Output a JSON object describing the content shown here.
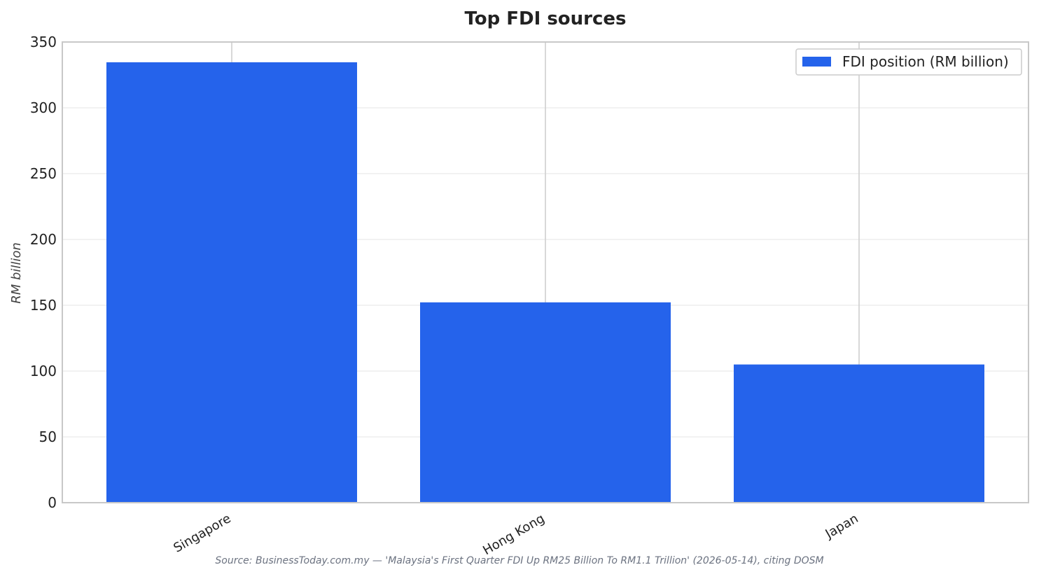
{
  "chart_data": {
    "type": "bar",
    "title": "Top FDI sources",
    "xlabel": "",
    "ylabel": "RM billion",
    "categories": [
      "Singapore",
      "Hong Kong",
      "Japan"
    ],
    "series": [
      {
        "name": "FDI position (RM billion)",
        "values": [
          334.6,
          152.2,
          105.0
        ],
        "color": "#2563eb"
      }
    ],
    "ylim": [
      0,
      350
    ],
    "yticks": [
      0,
      50,
      100,
      150,
      200,
      250,
      300,
      350
    ],
    "ytick_labels": [
      "0",
      "50",
      "100",
      "150",
      "200",
      "250",
      "300",
      "350"
    ],
    "grid": "horizontal",
    "legend_position": "top-right",
    "source_note": "Source: BusinessToday.com.my — 'Malaysia's First Quarter FDI Up RM25 Billion To RM1.1 Trillion' (2026-05-14), citing DOSM"
  }
}
